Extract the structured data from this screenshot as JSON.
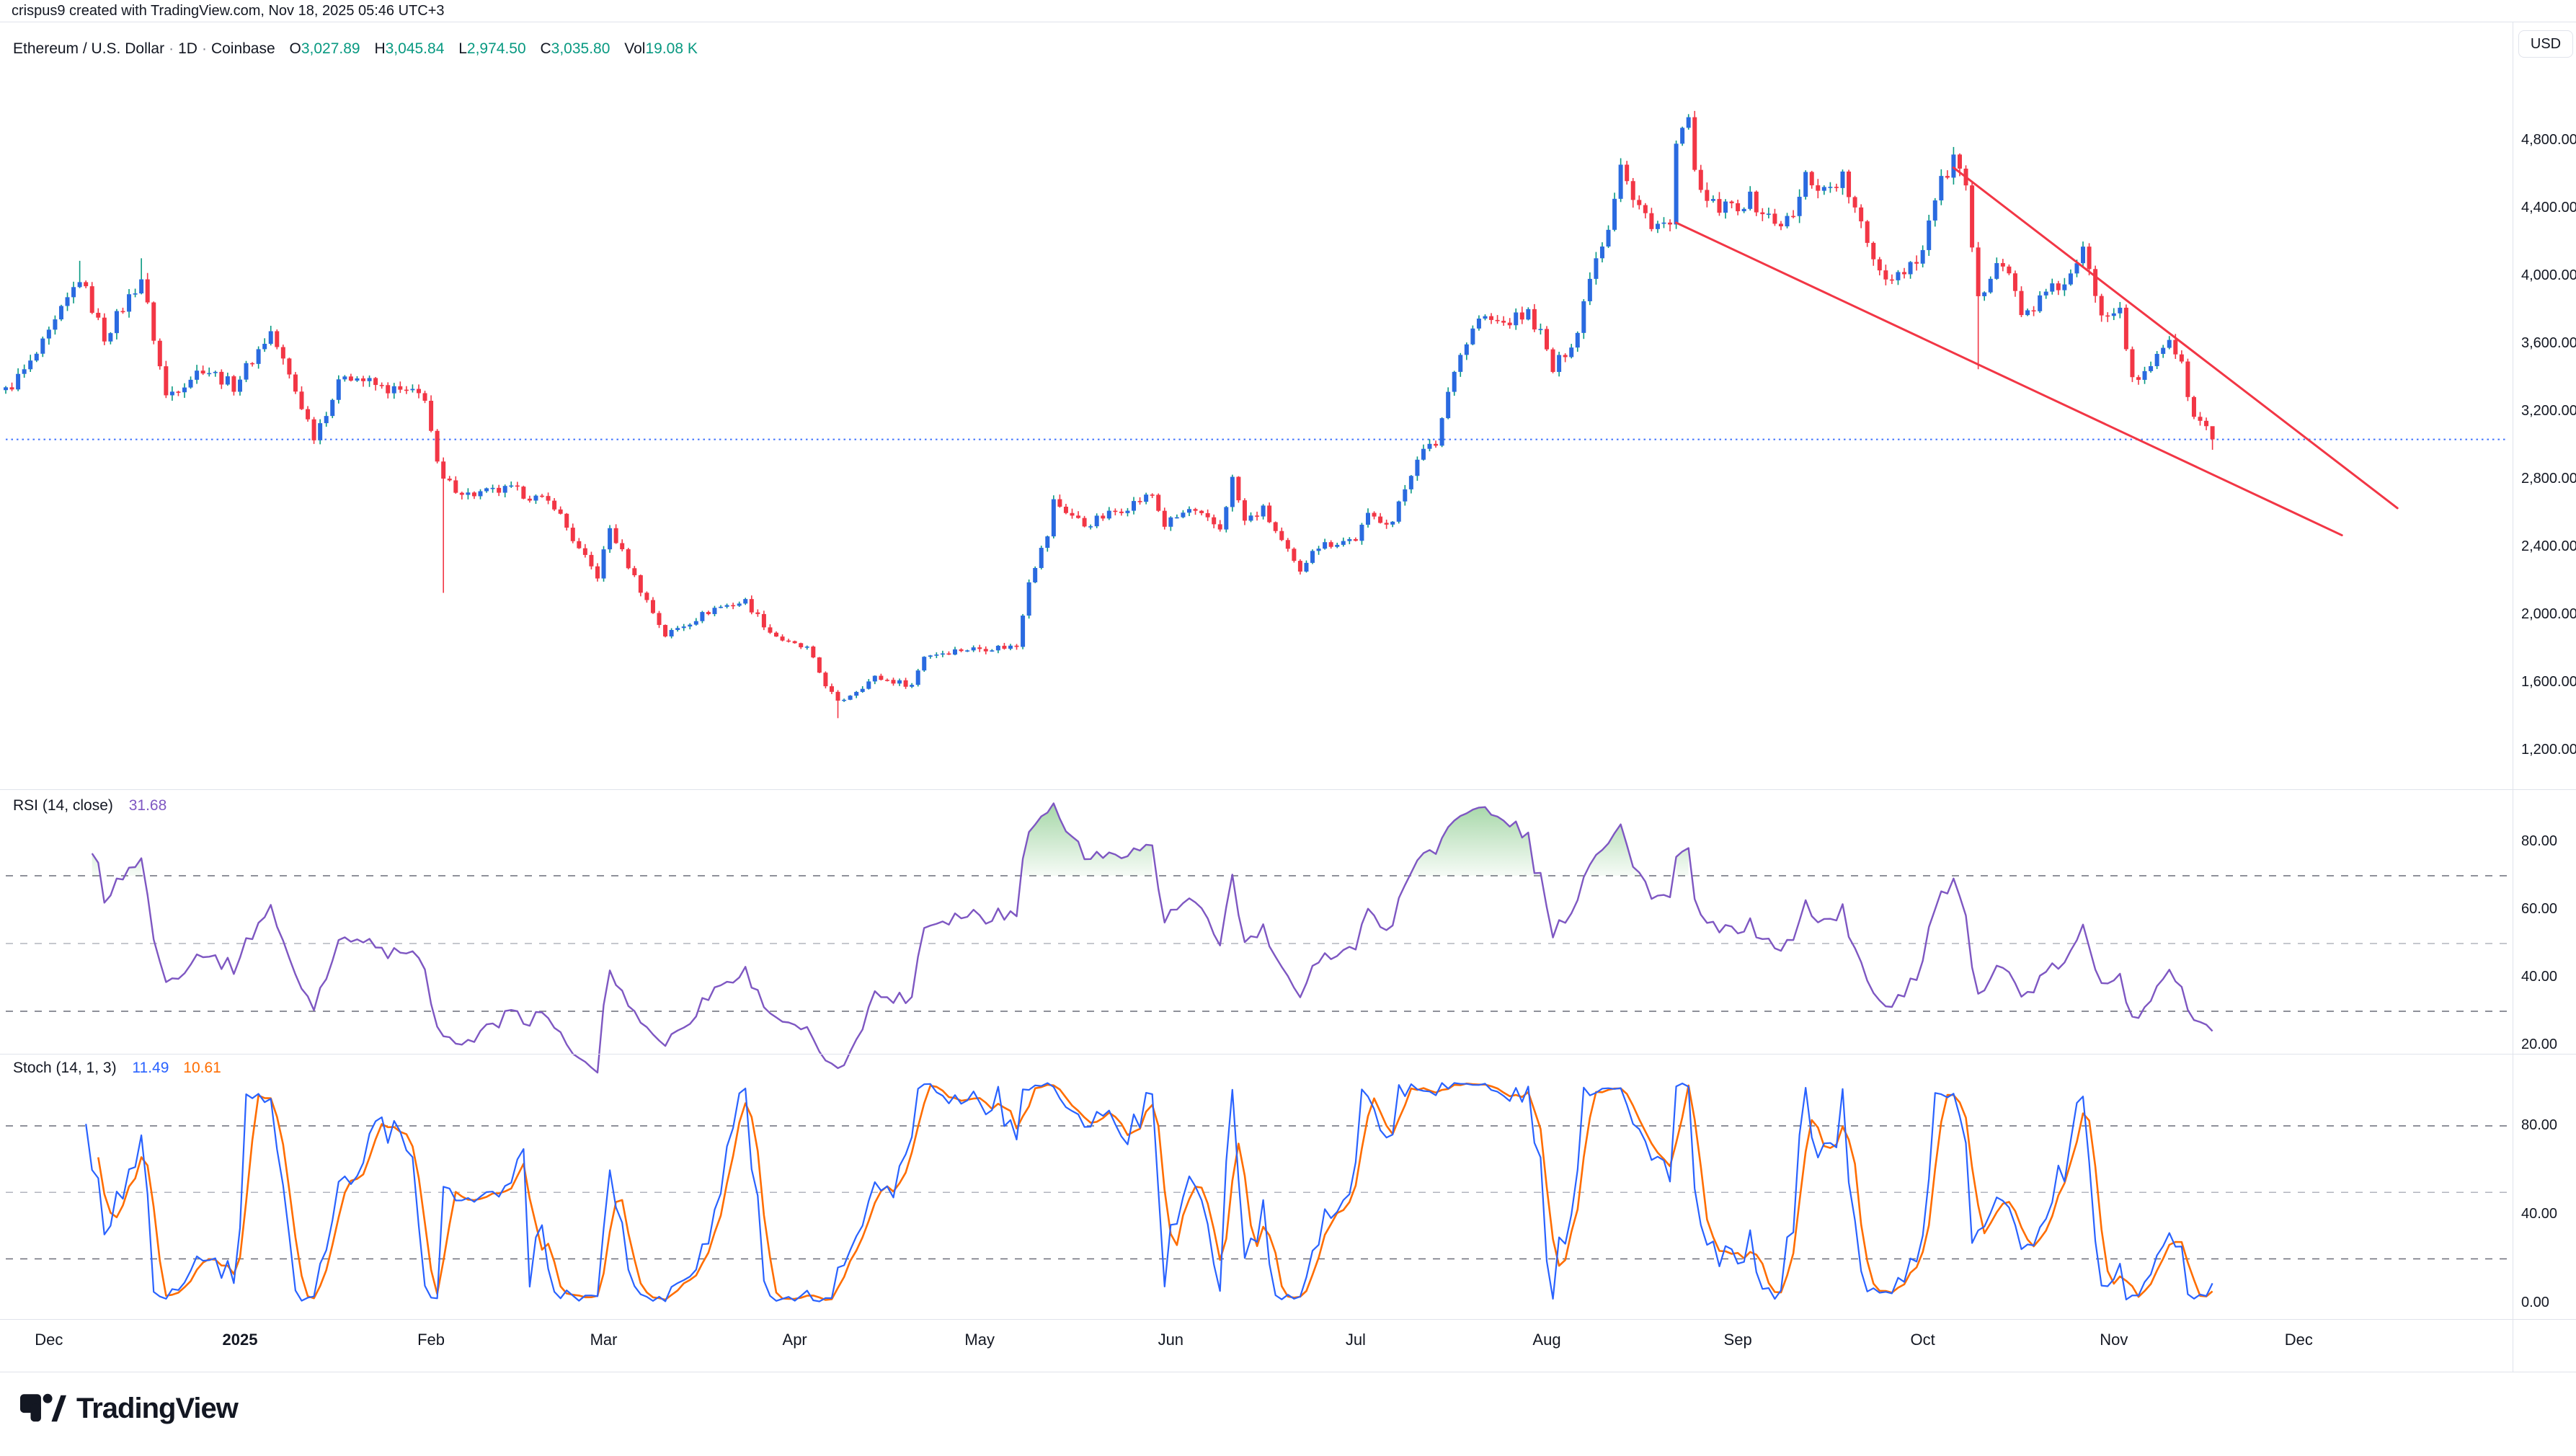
{
  "attribution": "crispus9 created with TradingView.com, Nov 18, 2025 05:46 UTC+3",
  "symbol": {
    "title": "Ethereum / U.S. Dollar",
    "resolution": "1D",
    "exchange": "Coinbase",
    "separator": "·"
  },
  "ohlc": {
    "o_label": "O",
    "o": "3,027.89",
    "h_label": "H",
    "h": "3,045.84",
    "l_label": "L",
    "l": "2,974.50",
    "c_label": "C",
    "c": "3,035.80",
    "vol_label": "Vol",
    "vol": "19.08 K"
  },
  "indicators": {
    "rsi": {
      "label": "RSI (14, close)",
      "value": "31.68",
      "upper_band": 70,
      "middle_band": 50,
      "lower_band": 30
    },
    "stoch": {
      "label": "Stoch (14, 1, 3)",
      "k_value": "11.49",
      "d_value": "10.61",
      "upper_band": 80,
      "middle_band": 50,
      "lower_band": 20
    }
  },
  "axis": {
    "currency": "USD",
    "price_ticks": [
      {
        "value": 4800,
        "label": "4,800.00"
      },
      {
        "value": 4400,
        "label": "4,400.00"
      },
      {
        "value": 4000,
        "label": "4,000.00"
      },
      {
        "value": 3600,
        "label": "3,600.00"
      },
      {
        "value": 3200,
        "label": "3,200.00"
      },
      {
        "value": 2800,
        "label": "2,800.00"
      },
      {
        "value": 2400,
        "label": "2,400.00"
      },
      {
        "value": 2000,
        "label": "2,000.00"
      },
      {
        "value": 1600,
        "label": "1,600.00"
      },
      {
        "value": 1200,
        "label": "1,200.00"
      }
    ],
    "rsi_ticks": [
      {
        "value": 80,
        "label": "80.00"
      },
      {
        "value": 60,
        "label": "60.00"
      },
      {
        "value": 40,
        "label": "40.00"
      },
      {
        "value": 20,
        "label": "20.00"
      }
    ],
    "stoch_ticks": [
      {
        "value": 80,
        "label": "80.00"
      },
      {
        "value": 40,
        "label": "40.00"
      },
      {
        "value": 0,
        "label": "0.00"
      }
    ],
    "months": [
      {
        "label": "Dec",
        "day": 7,
        "bold": false
      },
      {
        "label": "2025",
        "day": 38,
        "bold": true
      },
      {
        "label": "Feb",
        "day": 69,
        "bold": false
      },
      {
        "label": "Mar",
        "day": 97,
        "bold": false
      },
      {
        "label": "Apr",
        "day": 128,
        "bold": false
      },
      {
        "label": "May",
        "day": 158,
        "bold": false
      },
      {
        "label": "Jun",
        "day": 189,
        "bold": false
      },
      {
        "label": "Jul",
        "day": 219,
        "bold": false
      },
      {
        "label": "Aug",
        "day": 250,
        "bold": false
      },
      {
        "label": "Sep",
        "day": 281,
        "bold": false
      },
      {
        "label": "Oct",
        "day": 311,
        "bold": false
      },
      {
        "label": "Nov",
        "day": 342,
        "bold": false
      },
      {
        "label": "Dec",
        "day": 372,
        "bold": false
      }
    ]
  },
  "colors": {
    "up_body": "#2a6ae0",
    "up_wick": "#089981",
    "down_body": "#f23645",
    "down_wick": "#f23645",
    "value_up": "#089981",
    "trendline": "#f23645",
    "last_price_line": "#2962ff",
    "rsi_line": "#7e57c2",
    "rsi_fill": "#4caf50",
    "stoch_k": "#2962ff",
    "stoch_d": "#ff6d00",
    "band_dark": "#6a6d78",
    "band_light": "#b2b5be",
    "divider": "#e0e3eb",
    "text": "#131722"
  },
  "chart_data": {
    "type": "candlestick+indicators",
    "title": "Ethereum / U.S. Dollar, 1D, Coinbase",
    "date_range": {
      "first_bar": "2024-11-24",
      "last_bar": "2025-11-17",
      "bars": 359
    },
    "price_axis_range_visible": [
      1200,
      4800
    ],
    "last_price": 3035.8,
    "last_ohlc": {
      "open": 3027.89,
      "high": 3045.84,
      "low": 2974.5,
      "close": 3035.8,
      "volume": "19.08 K"
    },
    "close_anchors_day_price": [
      [
        0,
        3320
      ],
      [
        4,
        3480
      ],
      [
        7,
        3650
      ],
      [
        12,
        3990
      ],
      [
        16,
        3640
      ],
      [
        22,
        3990
      ],
      [
        26,
        3290
      ],
      [
        32,
        3460
      ],
      [
        37,
        3350
      ],
      [
        43,
        3670
      ],
      [
        50,
        3060
      ],
      [
        55,
        3430
      ],
      [
        61,
        3340
      ],
      [
        68,
        3290
      ],
      [
        70,
        2880
      ],
      [
        71,
        2790
      ],
      [
        75,
        2710
      ],
      [
        82,
        2740
      ],
      [
        89,
        2650
      ],
      [
        93,
        2380
      ],
      [
        96,
        2230
      ],
      [
        98,
        2510
      ],
      [
        103,
        2150
      ],
      [
        107,
        1880
      ],
      [
        115,
        2040
      ],
      [
        120,
        2080
      ],
      [
        124,
        1900
      ],
      [
        127,
        1830
      ],
      [
        130,
        1800
      ],
      [
        133,
        1590
      ],
      [
        135,
        1480
      ],
      [
        141,
        1630
      ],
      [
        147,
        1585
      ],
      [
        149,
        1760
      ],
      [
        155,
        1795
      ],
      [
        164,
        1815
      ],
      [
        166,
        2210
      ],
      [
        169,
        2470
      ],
      [
        170,
        2670
      ],
      [
        175,
        2530
      ],
      [
        180,
        2610
      ],
      [
        186,
        2710
      ],
      [
        188,
        2530
      ],
      [
        192,
        2620
      ],
      [
        197,
        2510
      ],
      [
        199,
        2800
      ],
      [
        201,
        2550
      ],
      [
        204,
        2620
      ],
      [
        210,
        2240
      ],
      [
        212,
        2400
      ],
      [
        216,
        2430
      ],
      [
        219,
        2450
      ],
      [
        221,
        2580
      ],
      [
        225,
        2550
      ],
      [
        229,
        2940
      ],
      [
        232,
        3010
      ],
      [
        235,
        3470
      ],
      [
        239,
        3750
      ],
      [
        243,
        3720
      ],
      [
        247,
        3780
      ],
      [
        249,
        3660
      ],
      [
        251,
        3440
      ],
      [
        255,
        3670
      ],
      [
        257,
        4020
      ],
      [
        260,
        4300
      ],
      [
        262,
        4680
      ],
      [
        264,
        4440
      ],
      [
        267,
        4320
      ],
      [
        270,
        4290
      ],
      [
        271,
        4770
      ],
      [
        273,
        4890
      ],
      [
        275,
        4460
      ],
      [
        278,
        4390
      ],
      [
        280,
        4410
      ],
      [
        283,
        4450
      ],
      [
        287,
        4310
      ],
      [
        290,
        4340
      ],
      [
        292,
        4590
      ],
      [
        295,
        4510
      ],
      [
        298,
        4580
      ],
      [
        302,
        4190
      ],
      [
        305,
        3990
      ],
      [
        308,
        4040
      ],
      [
        311,
        4150
      ],
      [
        313,
        4470
      ],
      [
        316,
        4690
      ],
      [
        318,
        4490
      ],
      [
        320,
        3840
      ],
      [
        323,
        4120
      ],
      [
        325,
        4020
      ],
      [
        327,
        3760
      ],
      [
        331,
        3890
      ],
      [
        335,
        3990
      ],
      [
        337,
        4140
      ],
      [
        340,
        3790
      ],
      [
        343,
        3830
      ],
      [
        345,
        3370
      ],
      [
        347,
        3410
      ],
      [
        349,
        3550
      ],
      [
        351,
        3640
      ],
      [
        353,
        3460
      ],
      [
        355,
        3160
      ],
      [
        357,
        3110
      ],
      [
        358,
        3035.8
      ]
    ],
    "special_wicks": {
      "12": {
        "high": 4090
      },
      "22": {
        "high": 4105
      },
      "71": {
        "low": 2130
      },
      "135": {
        "low": 1390
      },
      "273": {
        "high": 4956
      },
      "316": {
        "high": 4762
      },
      "320": {
        "low": 3450
      },
      "358": {
        "high": 3045.84,
        "low": 2974.5
      }
    },
    "trendlines": [
      {
        "name": "wedge-upper",
        "from": {
          "day": 316,
          "price": 4640
        },
        "to": {
          "day": 388,
          "price": 2630
        }
      },
      {
        "name": "wedge-lower",
        "from": {
          "day": 271,
          "price": 4315
        },
        "to": {
          "day": 379,
          "price": 2470
        }
      }
    ],
    "indicator_series": {
      "rsi": {
        "period": 14,
        "source": "close",
        "last_value": 31.68,
        "bands": [
          70,
          50,
          30
        ],
        "overbought_fill_above": 70
      },
      "stoch": {
        "k": 14,
        "k_smooth": 1,
        "d_smooth": 3,
        "last_k": 11.49,
        "last_d": 10.61,
        "bands": [
          80,
          50,
          20
        ]
      }
    }
  },
  "logo": {
    "text": "TradingView"
  }
}
